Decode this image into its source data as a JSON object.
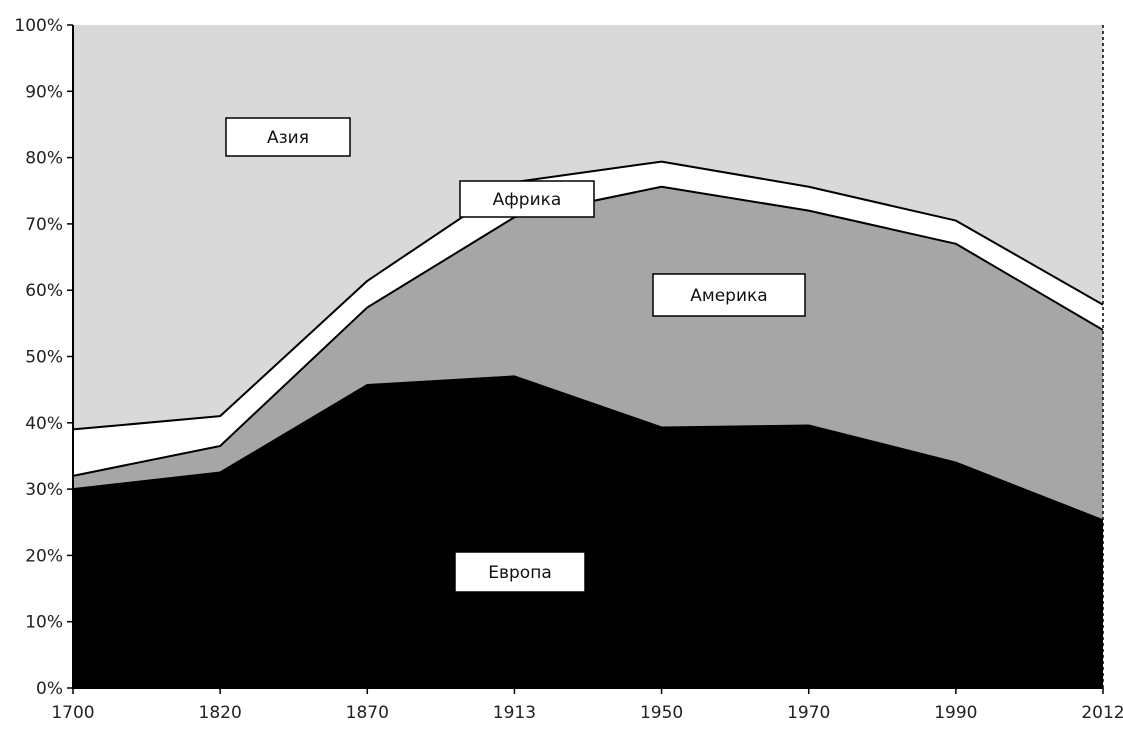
{
  "chart_data": {
    "type": "area",
    "stacked": true,
    "x": [
      "1700",
      "1820",
      "1870",
      "1913",
      "1950",
      "1970",
      "1990",
      "2012"
    ],
    "y_ticks": [
      "0%",
      "10%",
      "20%",
      "30%",
      "40%",
      "50%",
      "60%",
      "70%",
      "80%",
      "90%",
      "100%"
    ],
    "ylim": [
      0,
      100
    ],
    "grid": false,
    "series": [
      {
        "name": "Европа",
        "color": "#000000",
        "values": [
          30,
          32.5,
          45.7,
          47,
          39.3,
          39.6,
          34,
          25.3
        ]
      },
      {
        "name": "Америка",
        "color": "#a6a6a6",
        "values": [
          2,
          4,
          11.7,
          24,
          36.3,
          32.4,
          33,
          28.7
        ]
      },
      {
        "name": "Африка",
        "color": "#ffffff",
        "values": [
          7,
          4.5,
          4,
          5.3,
          3.8,
          3.6,
          3.5,
          3.8
        ]
      },
      {
        "name": "Азия",
        "color": "#d9d9d9",
        "values": [
          61,
          59,
          38.6,
          23.7,
          20.6,
          24.4,
          29.5,
          42.2
        ]
      }
    ]
  }
}
